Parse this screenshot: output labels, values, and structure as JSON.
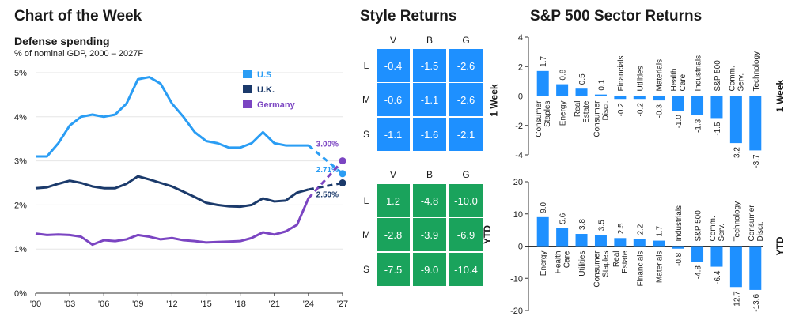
{
  "page": {
    "title": "Chart of the Week",
    "style_title": "Style Returns",
    "sector_title": "S&P 500 Sector Returns"
  },
  "colors": {
    "us": "#2a9df4",
    "uk": "#1b3a6b",
    "germany": "#7b45c2",
    "negative": "#1e90ff",
    "positive": "#1aa35c",
    "bar": "#1e90ff"
  },
  "chart_data": [
    {
      "type": "line",
      "title": "Defense spending",
      "subtitle": "% of nominal GDP, 2000 – 2027F",
      "x_ticks": [
        "'00",
        "'03",
        "'06",
        "'09",
        "'12",
        "'15",
        "'18",
        "'21",
        "'24",
        "'27"
      ],
      "x_range": [
        2000,
        2027
      ],
      "y_ticks": [
        "0%",
        "1%",
        "2%",
        "3%",
        "4%",
        "5%"
      ],
      "ylim": [
        0,
        5
      ],
      "legend": "top-right",
      "series": [
        {
          "name": "U.S",
          "color": "#2a9df4",
          "x": [
            2000,
            2001,
            2002,
            2003,
            2004,
            2005,
            2006,
            2007,
            2008,
            2009,
            2010,
            2011,
            2012,
            2013,
            2014,
            2015,
            2016,
            2017,
            2018,
            2019,
            2020,
            2021,
            2022,
            2023,
            2024
          ],
          "values": [
            3.1,
            3.1,
            3.4,
            3.8,
            4.0,
            4.05,
            4.0,
            4.05,
            4.3,
            4.85,
            4.9,
            4.75,
            4.3,
            4.0,
            3.65,
            3.45,
            3.4,
            3.3,
            3.3,
            3.4,
            3.65,
            3.4,
            3.35,
            3.35,
            3.35
          ],
          "forecast_x": [
            2024,
            2027
          ],
          "forecast_values": [
            3.35,
            2.71
          ],
          "end_label": "2.71%"
        },
        {
          "name": "U.K.",
          "color": "#1b3a6b",
          "x": [
            2000,
            2001,
            2002,
            2003,
            2004,
            2005,
            2006,
            2007,
            2008,
            2009,
            2010,
            2011,
            2012,
            2013,
            2014,
            2015,
            2016,
            2017,
            2018,
            2019,
            2020,
            2021,
            2022,
            2023,
            2024
          ],
          "values": [
            2.38,
            2.4,
            2.48,
            2.55,
            2.5,
            2.42,
            2.38,
            2.38,
            2.48,
            2.65,
            2.58,
            2.5,
            2.42,
            2.3,
            2.18,
            2.05,
            2.0,
            1.97,
            1.96,
            2.0,
            2.15,
            2.08,
            2.1,
            2.28,
            2.35
          ],
          "forecast_x": [
            2024,
            2027
          ],
          "forecast_values": [
            2.35,
            2.5
          ],
          "end_label": "2.50%"
        },
        {
          "name": "Germany",
          "color": "#7b45c2",
          "x": [
            2000,
            2001,
            2002,
            2003,
            2004,
            2005,
            2006,
            2007,
            2008,
            2009,
            2010,
            2011,
            2012,
            2013,
            2014,
            2015,
            2016,
            2017,
            2018,
            2019,
            2020,
            2021,
            2022,
            2023,
            2024
          ],
          "values": [
            1.35,
            1.32,
            1.33,
            1.32,
            1.28,
            1.1,
            1.2,
            1.18,
            1.22,
            1.32,
            1.28,
            1.22,
            1.25,
            1.2,
            1.18,
            1.15,
            1.16,
            1.17,
            1.18,
            1.25,
            1.38,
            1.33,
            1.4,
            1.55,
            2.15
          ],
          "forecast_x": [
            2024,
            2027
          ],
          "forecast_values": [
            2.15,
            3.0
          ],
          "end_label": "3.00%"
        }
      ]
    },
    {
      "type": "heatmap",
      "title": "Style Returns",
      "columns": [
        "V",
        "B",
        "G"
      ],
      "rows": [
        "L",
        "M",
        "S"
      ],
      "panels": [
        {
          "label": "1 Week",
          "values": [
            [
              -0.4,
              -1.5,
              -2.6
            ],
            [
              -0.6,
              -1.1,
              -2.6
            ],
            [
              -1.1,
              -1.6,
              -2.1
            ]
          ]
        },
        {
          "label": "YTD",
          "values": [
            [
              1.2,
              -4.8,
              -10.0
            ],
            [
              -2.8,
              -3.9,
              -6.9
            ],
            [
              -7.5,
              -9.0,
              -10.4
            ]
          ]
        }
      ]
    },
    {
      "type": "bar",
      "title": "S&P 500 Sector Returns",
      "label": "1 Week",
      "categories": [
        "Consumer Staples",
        "Energy",
        "Real Estate",
        "Consumer Discr.",
        "Financials",
        "Utilities",
        "Materials",
        "Health Care",
        "Industrials",
        "S&P 500",
        "Comm. Serv.",
        "Technology"
      ],
      "values": [
        1.7,
        0.8,
        0.5,
        0.1,
        -0.2,
        -0.2,
        -0.3,
        -1.0,
        -1.3,
        -1.5,
        -3.2,
        -3.7
      ],
      "y_ticks": [
        "4",
        "2",
        "0",
        "-2",
        "-4"
      ],
      "ylim": [
        -4,
        4
      ]
    },
    {
      "type": "bar",
      "title": "S&P 500 Sector Returns",
      "label": "YTD",
      "categories": [
        "Energy",
        "Health Care",
        "Utilities",
        "Consumer Staples",
        "Real Estate",
        "Financials",
        "Materials",
        "Industrials",
        "S&P 500",
        "Comm. Serv.",
        "Technology",
        "Consumer Discr."
      ],
      "values": [
        9.0,
        5.6,
        3.8,
        3.5,
        2.5,
        2.2,
        1.7,
        -0.8,
        -4.8,
        -6.4,
        -12.7,
        -13.6
      ],
      "y_ticks": [
        "20",
        "10",
        "0",
        "-10",
        "-20"
      ],
      "ylim": [
        -20,
        20
      ]
    }
  ]
}
